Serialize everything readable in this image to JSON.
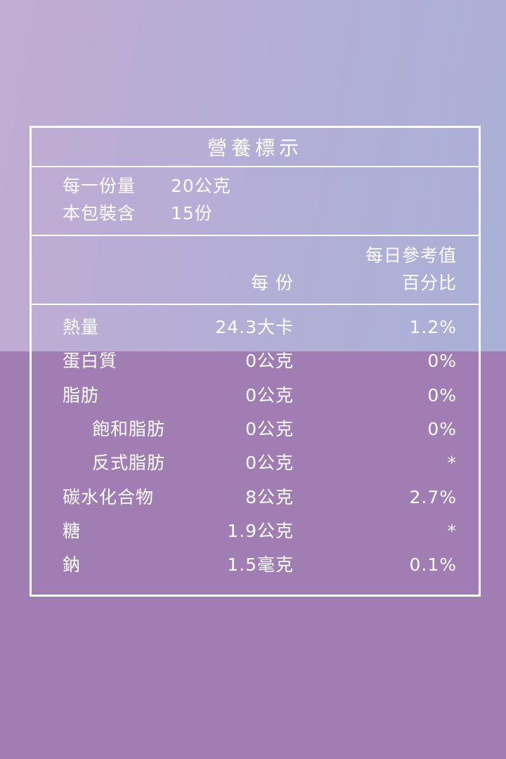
{
  "header": {
    "title": "營養標示"
  },
  "serving": [
    {
      "label": "每一份量",
      "value": "20公克"
    },
    {
      "label": "本包裝含",
      "value": "15份"
    }
  ],
  "columns": {
    "per_serving": "每 份",
    "daily_value": [
      "每日參考值",
      "百分比"
    ]
  },
  "table": {
    "rows": [
      [
        "熱量",
        "24.3大卡",
        "1.2%"
      ],
      [
        "蛋白質",
        "0公克",
        "0%"
      ],
      [
        "脂肪",
        "0公克",
        "0%"
      ],
      [
        "飽和脂肪",
        "0公克",
        "0%"
      ],
      [
        "反式脂肪",
        "0公克",
        "*"
      ],
      [
        "碳水化合物",
        "8公克",
        "2.7%"
      ],
      [
        "糖",
        "1.9公克",
        "*"
      ],
      [
        "鈉",
        "1.5毫克",
        "0.1%"
      ]
    ]
  }
}
